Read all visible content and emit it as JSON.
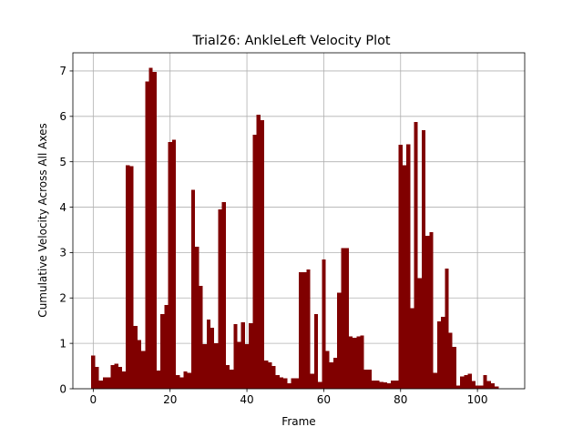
{
  "chart_data": {
    "type": "bar",
    "title": "Trial26: AnkleLeft Velocity Plot",
    "xlabel": "Frame",
    "ylabel": "Cumulative Velocity Across All Axes",
    "xlim": [
      -5.3,
      112.3
    ],
    "ylim": [
      0,
      7.4
    ],
    "xticks": [
      0,
      20,
      40,
      60,
      80,
      100
    ],
    "yticks": [
      0,
      1,
      2,
      3,
      4,
      5,
      6,
      7
    ],
    "grid": true,
    "bar_color": "#800000",
    "bar_width": 1,
    "x": [
      0,
      1,
      2,
      3,
      4,
      5,
      6,
      7,
      8,
      9,
      10,
      11,
      12,
      13,
      14,
      15,
      16,
      17,
      18,
      19,
      20,
      21,
      22,
      23,
      24,
      25,
      26,
      27,
      28,
      29,
      30,
      31,
      32,
      33,
      34,
      35,
      36,
      37,
      38,
      39,
      40,
      41,
      42,
      43,
      44,
      45,
      46,
      47,
      48,
      49,
      50,
      51,
      52,
      53,
      54,
      55,
      56,
      57,
      58,
      59,
      60,
      61,
      62,
      63,
      64,
      65,
      66,
      67,
      68,
      69,
      70,
      71,
      72,
      73,
      74,
      75,
      76,
      77,
      78,
      79,
      80,
      81,
      82,
      83,
      84,
      85,
      86,
      87,
      88,
      89,
      90,
      91,
      92,
      93,
      94,
      95,
      96,
      97,
      98,
      99,
      100,
      101,
      102,
      103,
      104,
      105,
      106
    ],
    "values": [
      0.73,
      0.48,
      0.18,
      0.25,
      0.25,
      0.52,
      0.55,
      0.48,
      0.38,
      4.92,
      4.9,
      1.38,
      1.07,
      0.83,
      6.77,
      7.07,
      6.98,
      0.4,
      1.64,
      1.84,
      5.43,
      5.48,
      0.3,
      0.25,
      0.38,
      0.35,
      4.38,
      3.13,
      2.27,
      0.98,
      1.52,
      1.34,
      1.0,
      3.95,
      4.11,
      0.52,
      0.42,
      1.42,
      1.03,
      1.46,
      0.98,
      1.44,
      5.6,
      6.04,
      5.92,
      0.62,
      0.58,
      0.5,
      0.3,
      0.25,
      0.23,
      0.12,
      0.23,
      0.23,
      2.57,
      2.57,
      2.63,
      0.33,
      1.64,
      0.15,
      2.85,
      0.83,
      0.58,
      0.68,
      2.12,
      3.1,
      3.1,
      1.15,
      1.12,
      1.15,
      1.17,
      0.42,
      0.42,
      0.18,
      0.18,
      0.15,
      0.14,
      0.12,
      0.18,
      0.18,
      5.37,
      4.92,
      5.38,
      1.77,
      5.88,
      2.44,
      5.7,
      3.37,
      3.45,
      0.35,
      1.48,
      1.58,
      2.65,
      1.23,
      0.92,
      0.07,
      0.27,
      0.3,
      0.33,
      0.17,
      0.07,
      0.07,
      0.3,
      0.17,
      0.12,
      0.05,
      0.0
    ]
  }
}
